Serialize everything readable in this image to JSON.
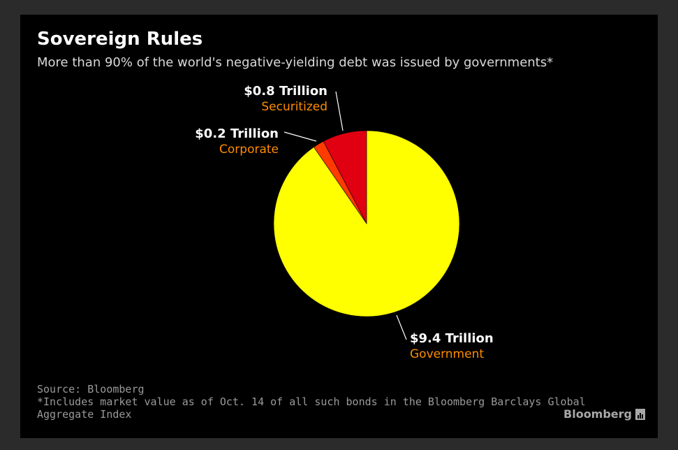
{
  "title": "Sovereign Rules",
  "subtitle": "More than 90% of the world's negative-yielding debt was issued by governments*",
  "chart_data": {
    "type": "pie",
    "title": "Sovereign Rules",
    "subtitle": "More than 90% of the world's negative-yielding debt was issued by governments*",
    "unit": "Trillion USD",
    "slices": [
      {
        "name": "Government",
        "value": 9.4,
        "value_label": "$9.4 Trillion",
        "color": "#ffff00"
      },
      {
        "name": "Corporate",
        "value": 0.2,
        "value_label": "$0.2 Trillion",
        "color": "#ff3b00"
      },
      {
        "name": "Securitized",
        "value": 0.8,
        "value_label": "$0.8 Trillion",
        "color": "#e00012"
      }
    ]
  },
  "colors": {
    "value_text": "#ffffff",
    "category_text": "#ff8c00",
    "leader_line": "#ffffff",
    "background": "#000000"
  },
  "footer": {
    "source": "Source: Bloomberg",
    "note_line1": "*Includes market value as of Oct. 14 of all such bonds in the Bloomberg Barclays Global",
    "note_line2": "Aggregate Index"
  },
  "brand": {
    "name": "Bloomberg",
    "icon": "bloomberg-terminal-icon"
  }
}
